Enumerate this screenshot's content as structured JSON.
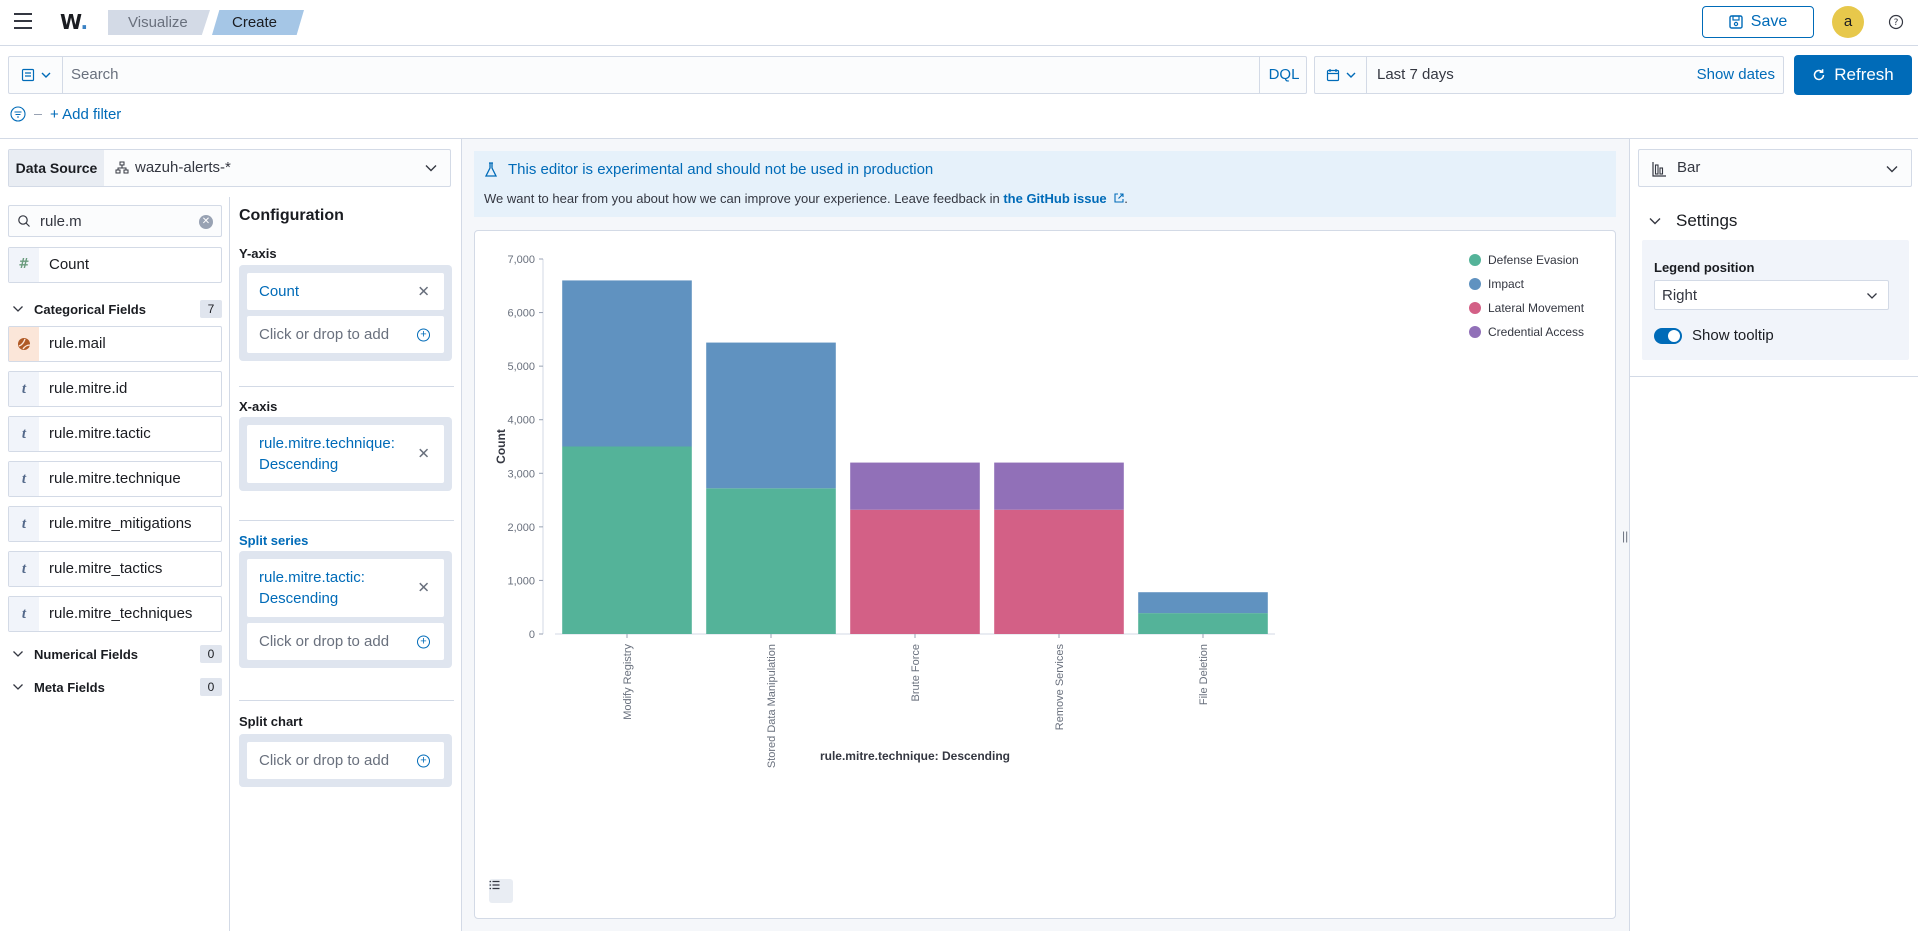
{
  "header": {
    "logo_text": "W",
    "breadcrumbs": [
      "Visualize",
      "Create"
    ],
    "save_label": "Save",
    "avatar_initial": "a"
  },
  "query": {
    "search_placeholder": "Search",
    "language_label": "DQL",
    "time_range": "Last 7 days",
    "show_dates_label": "Show dates",
    "refresh_label": "Refresh",
    "add_filter_label": "+ Add filter"
  },
  "data_source": {
    "label": "Data Source",
    "value": "wazuh-alerts-*"
  },
  "fields": {
    "search_value": "rule.m",
    "count_field": {
      "type": "#",
      "name": "Count"
    },
    "categorical_title": "Categorical Fields",
    "categorical_count": "7",
    "categorical": [
      {
        "type": "geo",
        "name": "rule.mail"
      },
      {
        "type": "t",
        "name": "rule.mitre.id"
      },
      {
        "type": "t",
        "name": "rule.mitre.tactic"
      },
      {
        "type": "t",
        "name": "rule.mitre.technique"
      },
      {
        "type": "t",
        "name": "rule.mitre_mitigations"
      },
      {
        "type": "t",
        "name": "rule.mitre_tactics"
      },
      {
        "type": "t",
        "name": "rule.mitre_techniques"
      }
    ],
    "numerical_title": "Numerical Fields",
    "numerical_count": "0",
    "meta_title": "Meta Fields",
    "meta_count": "0"
  },
  "config": {
    "title": "Configuration",
    "y_axis_label": "Y-axis",
    "y_axis_item": "Count",
    "x_axis_label": "X-axis",
    "x_axis_item": "rule.mitre.technique: Descending",
    "split_series_label": "Split series",
    "split_series_item": "rule.mitre.tactic: Descending",
    "split_chart_label": "Split chart",
    "add_placeholder": "Click or drop to add"
  },
  "callout": {
    "title": "This editor is experimental and should not be used in production",
    "body": "We want to hear from you about how we can improve your experience. Leave feedback in ",
    "link": "the GitHub issue",
    "tail": "."
  },
  "chart_data": {
    "type": "bar",
    "stacked": true,
    "categories": [
      "Modify Registry",
      "Stored Data Manipulation",
      "Brute Force",
      "Remove Services",
      "File Deletion"
    ],
    "series": [
      {
        "name": "Defense Evasion",
        "color": "#54b399",
        "values": [
          3500,
          2720,
          0,
          0,
          390
        ]
      },
      {
        "name": "Impact",
        "color": "#6092c0",
        "values": [
          3100,
          2720,
          0,
          0,
          390
        ]
      },
      {
        "name": "Lateral Movement",
        "color": "#d36086",
        "values": [
          0,
          0,
          2320,
          2320,
          0
        ]
      },
      {
        "name": "Credential Access",
        "color": "#9170b8",
        "values": [
          0,
          0,
          880,
          880,
          0
        ]
      }
    ],
    "ylabel": "Count",
    "xlabel": "rule.mitre.technique: Descending",
    "ylim": [
      0,
      7000
    ],
    "yticks": [
      0,
      1000,
      2000,
      3000,
      4000,
      5000,
      6000,
      7000
    ],
    "ytick_labels": [
      "0",
      "1,000",
      "2,000",
      "3,000",
      "4,000",
      "5,000",
      "6,000",
      "7,000"
    ],
    "legend_position": "top-right"
  },
  "right_panel": {
    "chart_type": "Bar",
    "settings_title": "Settings",
    "legend_position_label": "Legend position",
    "legend_position_value": "Right",
    "show_tooltip_label": "Show tooltip",
    "show_tooltip": true
  }
}
